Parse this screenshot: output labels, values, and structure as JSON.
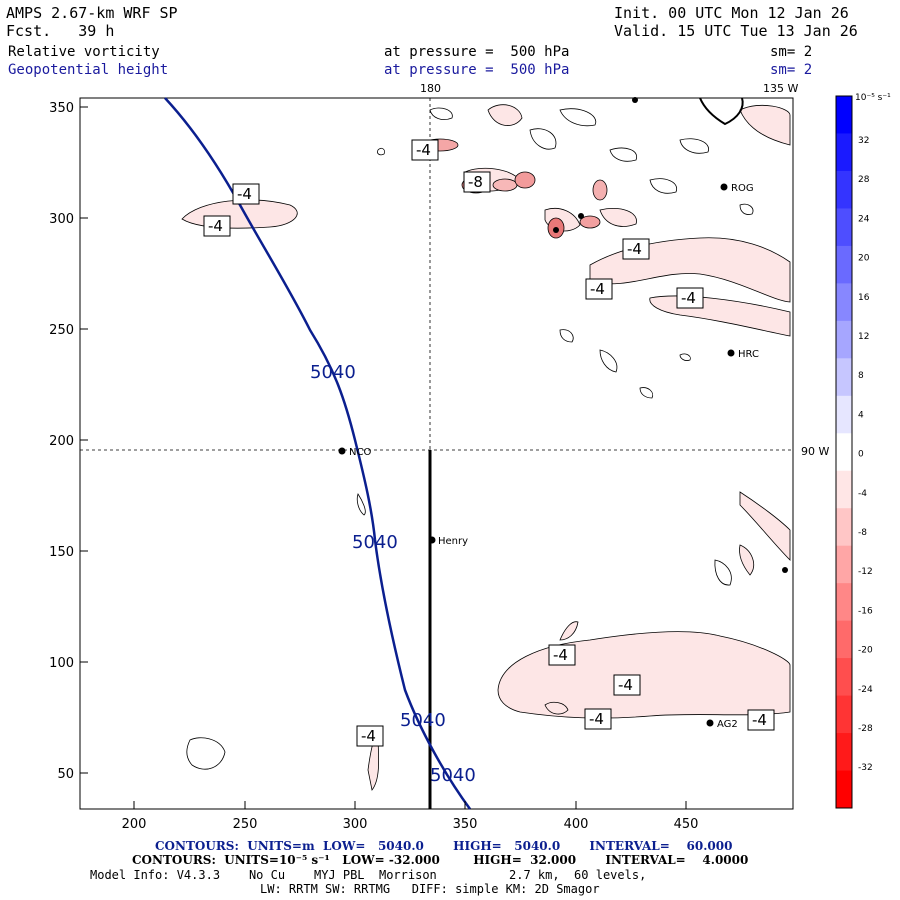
{
  "header": {
    "model": "AMPS 2.67-km WRF SP",
    "forecast": "Fcst.   39 h",
    "init": "Init. 00 UTC Mon 12 Jan 26",
    "valid": "Valid. 15 UTC Tue 13 Jan 26",
    "field1": "Relative vorticity",
    "field2": "Geopotential height",
    "pressure1": "at pressure =  500 hPa",
    "pressure2": "at pressure =  500 hPa",
    "sm1": "sm= 2",
    "sm2": "sm= 2"
  },
  "map": {
    "lon_180": "180",
    "lon_135w": "135 W",
    "lon_90w": "90 W",
    "y_ticks": [
      "350",
      "300",
      "250",
      "200",
      "150",
      "100",
      "50"
    ],
    "x_ticks": [
      "200",
      "250",
      "300",
      "350",
      "400",
      "450"
    ],
    "stations": [
      {
        "name": "ROG"
      },
      {
        "name": "HRC"
      },
      {
        "name": "NCO"
      },
      {
        "name": "Henry"
      },
      {
        "name": "AG2"
      }
    ],
    "height_labels": [
      "5040",
      "5040",
      "5040",
      "5040"
    ],
    "vort_labels": [
      "-4",
      "-4",
      "-4",
      "-8",
      "-4",
      "-4",
      "-4",
      "-4",
      "-4",
      "-4",
      "-4"
    ]
  },
  "colorbar": {
    "units": "10⁻⁵ s⁻¹",
    "labels": [
      "32",
      "28",
      "24",
      "20",
      "16",
      "12",
      "8",
      "4",
      "0",
      "-4",
      "-8",
      "-12",
      "-16",
      "-20",
      "-24",
      "-28",
      "-32"
    ],
    "colors": [
      "#0000ff",
      "#1a1aff",
      "#3434ff",
      "#4e4eff",
      "#6a6aff",
      "#8787ff",
      "#a6a6ff",
      "#c6c6ff",
      "#e6e6ff",
      "#ffffff",
      "#ffe6e6",
      "#ffc6c6",
      "#ffa6a6",
      "#ff8787",
      "#ff6a6a",
      "#ff4e4e",
      "#ff3434",
      "#ff1a1a",
      "#ff0000"
    ]
  },
  "footer": {
    "line1": "CONTOURS:  UNITS=m  LOW=   5040.0       HIGH=   5040.0       INTERVAL=    60.000",
    "line2": "CONTOURS:  UNITS=10⁻⁵ s⁻¹   LOW= -32.000        HIGH=  32.000       INTERVAL=    4.0000",
    "line3": "Model Info: V4.3.3    No Cu    MYJ PBL  Morrison          2.7 km,  60 levels,",
    "line4": "LW: RRTM SW: RRTMG   DIFF: simple KM: 2D Smagor"
  }
}
